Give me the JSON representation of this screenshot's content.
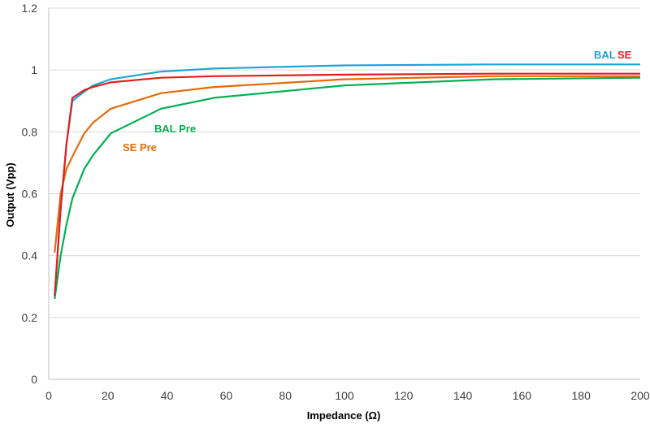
{
  "chart_data": {
    "type": "line",
    "title": "",
    "xlabel": "Impedance (Ω)",
    "ylabel": "Output (Vpp)",
    "xlim": [
      0,
      200
    ],
    "ylim": [
      0,
      1.2
    ],
    "x_ticks": [
      "0",
      "20",
      "40",
      "60",
      "80",
      "100",
      "120",
      "140",
      "160",
      "180",
      "200"
    ],
    "y_ticks": [
      "0",
      "0.2",
      "0.4",
      "0.6",
      "0.8",
      "1",
      "1.2"
    ],
    "grid": "horizontal",
    "legend": "none",
    "series": [
      {
        "name": "SE Pre",
        "color": "#E36C0A",
        "points": [
          [
            2,
            0.41
          ],
          [
            4,
            0.6
          ],
          [
            6,
            0.68
          ],
          [
            8,
            0.72
          ],
          [
            12,
            0.795
          ],
          [
            15,
            0.83
          ],
          [
            21,
            0.875
          ],
          [
            38,
            0.925
          ],
          [
            56,
            0.945
          ],
          [
            100,
            0.97
          ],
          [
            150,
            0.98
          ],
          [
            200,
            0.98
          ]
        ]
      },
      {
        "name": "BAL Pre",
        "color": "#00B050",
        "points": [
          [
            2,
            0.26
          ],
          [
            4,
            0.4
          ],
          [
            6,
            0.5
          ],
          [
            8,
            0.585
          ],
          [
            12,
            0.68
          ],
          [
            15,
            0.725
          ],
          [
            21,
            0.795
          ],
          [
            38,
            0.875
          ],
          [
            56,
            0.91
          ],
          [
            100,
            0.95
          ],
          [
            150,
            0.97
          ],
          [
            200,
            0.975
          ]
        ]
      },
      {
        "name": "BAL",
        "color": "#1BA6D4",
        "points": [
          [
            2,
            0.27
          ],
          [
            4,
            0.55
          ],
          [
            6,
            0.76
          ],
          [
            8,
            0.9
          ],
          [
            12,
            0.93
          ],
          [
            15,
            0.95
          ],
          [
            21,
            0.97
          ],
          [
            38,
            0.995
          ],
          [
            56,
            1.005
          ],
          [
            100,
            1.015
          ],
          [
            150,
            1.018
          ],
          [
            200,
            1.018
          ]
        ]
      },
      {
        "name": "SE",
        "color": "#E02020",
        "points": [
          [
            2,
            0.27
          ],
          [
            4,
            0.55
          ],
          [
            6,
            0.76
          ],
          [
            8,
            0.91
          ],
          [
            12,
            0.935
          ],
          [
            15,
            0.945
          ],
          [
            21,
            0.96
          ],
          [
            38,
            0.975
          ],
          [
            56,
            0.98
          ],
          [
            100,
            0.985
          ],
          [
            150,
            0.988
          ],
          [
            200,
            0.988
          ]
        ]
      }
    ],
    "labels": {
      "bal_pre": "BAL Pre",
      "se_pre": "SE Pre",
      "bal": "BAL",
      "se": "SE"
    }
  }
}
